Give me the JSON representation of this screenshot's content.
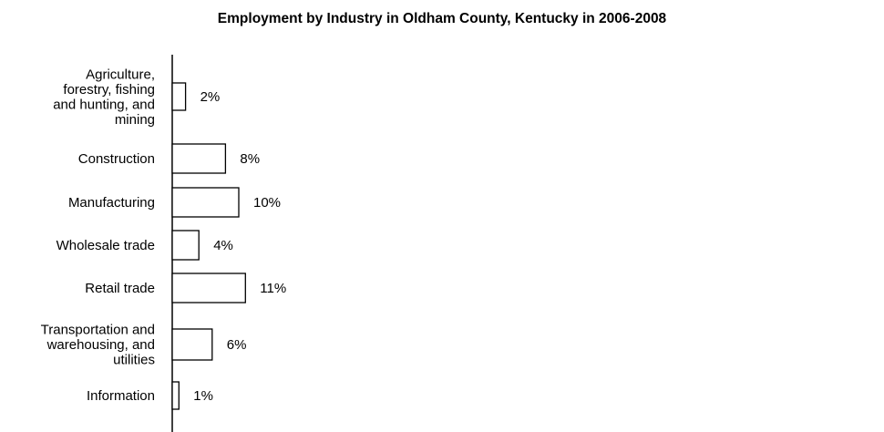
{
  "chart_data": {
    "type": "bar",
    "orientation": "horizontal",
    "title": "Employment by Industry in Oldham County, Kentucky in 2006-2008",
    "categories": [
      "Agriculture, forestry, fishing and hunting, and mining",
      "Construction",
      "Manufacturing",
      "Wholesale trade",
      "Retail trade",
      "Transportation and warehousing, and utilities",
      "Information"
    ],
    "category_label_lines": [
      [
        "Agriculture,",
        "forestry, fishing",
        "and hunting, and",
        "mining"
      ],
      [
        "Construction"
      ],
      [
        "Manufacturing"
      ],
      [
        "Wholesale trade"
      ],
      [
        "Retail trade"
      ],
      [
        "Transportation and",
        "warehousing, and",
        "utilities"
      ],
      [
        "Information"
      ]
    ],
    "values": [
      2,
      8,
      10,
      4,
      11,
      6,
      1
    ],
    "value_labels": [
      "2%",
      "8%",
      "10%",
      "4%",
      "11%",
      "6%",
      "1%"
    ],
    "unit": "%",
    "bar_fill": "#ffffff",
    "bar_stroke": "#000000",
    "grid": false,
    "legend": "none"
  }
}
